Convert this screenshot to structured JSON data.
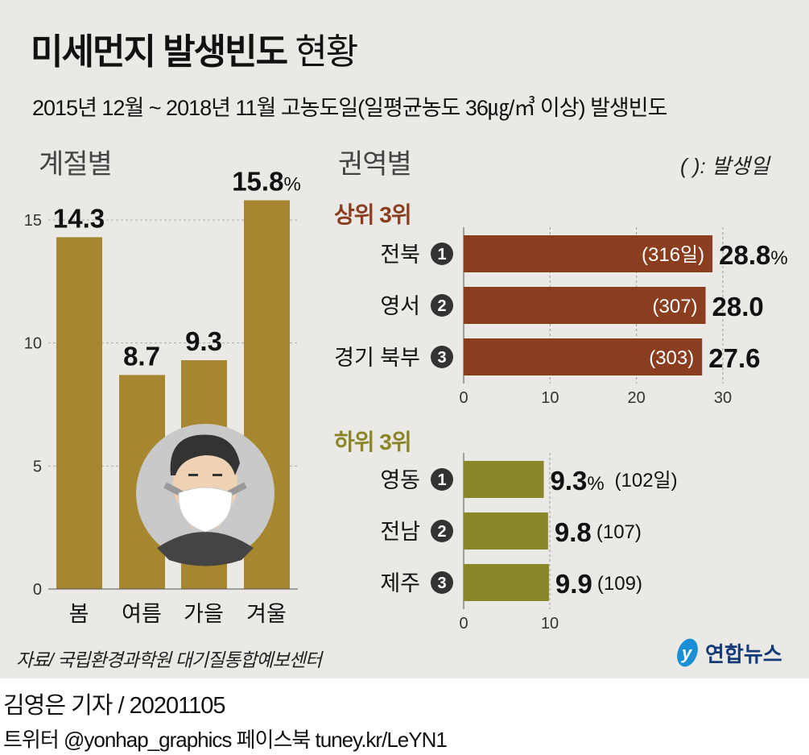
{
  "title": {
    "bold": "미세먼지 발생빈도",
    "light": "현황"
  },
  "subtitle": "2015년 12월 ~ 2018년 11월 고농도일(일평균농도 36㎍/㎥ 이상) 발생빈도",
  "colors": {
    "background": "#ebe9e6",
    "season_bar": "#a6862f",
    "top_bar": "#8b3e1f",
    "bottom_bar": "#8a8526",
    "rank_badge": "#333333"
  },
  "chart_data": [
    {
      "type": "bar",
      "title": "계절별",
      "categories": [
        "봄",
        "여름",
        "가을",
        "겨울"
      ],
      "values": [
        14.3,
        8.7,
        9.3,
        15.8
      ],
      "value_labels": [
        "14.3",
        "8.7",
        "9.3",
        "15.8"
      ],
      "unit": "%",
      "ylim": [
        0,
        15
      ],
      "yticks": [
        "0",
        "5",
        "10",
        "15"
      ],
      "grid": true
    },
    {
      "type": "bar",
      "orientation": "horizontal",
      "title": "권역별",
      "note": "( ): 발생일",
      "group_label": "상위 3위",
      "categories": [
        "전북",
        "영서",
        "경기 북부"
      ],
      "ranks": [
        "1",
        "2",
        "3"
      ],
      "values": [
        28.8,
        28.0,
        27.6
      ],
      "value_labels": [
        "28.8",
        "28.0",
        "27.6"
      ],
      "unit": "%",
      "days": [
        "(316일)",
        "(307)",
        "(303)"
      ],
      "xlim": [
        0,
        30
      ],
      "xticks": [
        "0",
        "10",
        "20",
        "30"
      ],
      "grid": true
    },
    {
      "type": "bar",
      "orientation": "horizontal",
      "group_label": "하위 3위",
      "categories": [
        "영동",
        "전남",
        "제주"
      ],
      "ranks": [
        "1",
        "2",
        "3"
      ],
      "values": [
        9.3,
        9.8,
        9.9
      ],
      "value_labels": [
        "9.3",
        "9.8",
        "9.9"
      ],
      "unit": "%",
      "days": [
        "(102일)",
        "(107)",
        "(109)"
      ],
      "xlim": [
        0,
        10
      ],
      "xticks": [
        "0",
        "10"
      ]
    }
  ],
  "source": "자료/ 국립환경과학원 대기질통합예보센터",
  "logo": "연합뉴스",
  "byline": "김영은 기자 / 20201105",
  "social": "트위터 @yonhap_graphics  페이스북 tuney.kr/LeYN1"
}
